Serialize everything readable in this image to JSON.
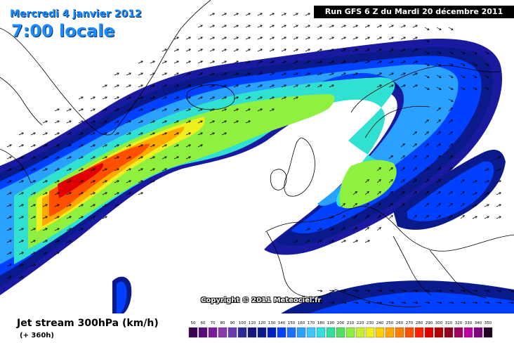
{
  "header": {
    "date": "Mercredi 4 janvier 2012",
    "time": "7:00 locale",
    "run": "Run GFS 6 Z du Mardi 20 décembre 2011"
  },
  "copyright": "Copyright © 2011 Meteociel.fr",
  "product": {
    "title": "Jet stream 300hPa (km/h)",
    "lead": "(+ 360h)"
  },
  "legend": {
    "values": [
      "50",
      "60",
      "70",
      "80",
      "90",
      "100",
      "110",
      "120",
      "130",
      "140",
      "150",
      "160",
      "170",
      "180",
      "190",
      "200",
      "210",
      "220",
      "230",
      "240",
      "250",
      "260",
      "270",
      "280",
      "290",
      "300",
      "310",
      "320",
      "330",
      "340",
      "350"
    ],
    "colors": [
      "#3a0050",
      "#5a0a78",
      "#7a1a9a",
      "#8a3aaa",
      "#6a3ab0",
      "#2a2a90",
      "#16167a",
      "#0a1a8a",
      "#0020c0",
      "#0040ff",
      "#1a70ff",
      "#2aa0ff",
      "#3ac8ff",
      "#30e0e0",
      "#30e0a0",
      "#50e060",
      "#90f040",
      "#c8f030",
      "#f0f020",
      "#ffd000",
      "#ffa800",
      "#ff8000",
      "#ff5000",
      "#ff2000",
      "#e00000",
      "#b00000",
      "#900020",
      "#a00060",
      "#c000a0",
      "#800080",
      "#200020"
    ]
  },
  "colors": {
    "land": "#ffffff",
    "sea": "#ffffff",
    "coast": "#000000"
  }
}
